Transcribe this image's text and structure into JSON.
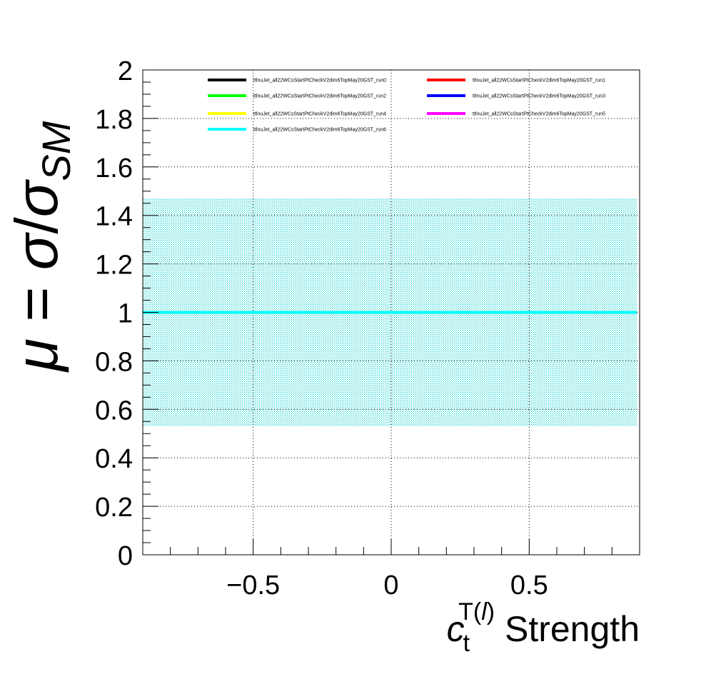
{
  "chart_data": {
    "type": "line",
    "xlabel": {
      "symbol": "c",
      "subscript": "t",
      "superscript": "T(l)",
      "superscript_prefix": "T(",
      "superscript_italic": "l",
      "superscript_suffix": ")",
      "suffix": " Strength"
    },
    "ylabel": {
      "mu": "μ",
      "equals": " = ",
      "sigma": "σ",
      "slash": "/",
      "sigma2": "σ",
      "sub": "SM"
    },
    "xlim": [
      -0.9,
      0.9
    ],
    "ylim": [
      0,
      2
    ],
    "x_ticks": [
      -0.5,
      0,
      0.5
    ],
    "x_tick_labels": [
      "−0.5",
      "0",
      "0.5"
    ],
    "y_ticks": [
      0,
      0.2,
      0.4,
      0.6,
      0.8,
      1,
      1.2,
      1.4,
      1.6,
      1.8,
      2
    ],
    "y_tick_labels": [
      "0",
      "0.2",
      "0.4",
      "0.6",
      "0.8",
      "1",
      "1.2",
      "1.4",
      "1.6",
      "1.8",
      "2"
    ],
    "grid": true,
    "legend_position": "top",
    "band": {
      "x": [
        -0.9,
        0.89
      ],
      "ymin": 0.53,
      "ymax": 1.47,
      "color": "#00e5e5"
    },
    "series": [
      {
        "name": "ttlnuJet_all22WCsStartPtCheckV2dim6TopMay20GST_run0",
        "color": "#000000",
        "x": [
          -0.9,
          0.89
        ],
        "y": [
          1,
          1
        ]
      },
      {
        "name": "ttlnuJet_all22WCsStartPtCheckV2dim6TopMay20GST_run1",
        "color": "#ff0000",
        "x": [
          -0.9,
          0.89
        ],
        "y": [
          1,
          1
        ]
      },
      {
        "name": "ttlnuJet_all22WCsStartPtCheckV2dim6TopMay20GST_run2",
        "color": "#00ff00",
        "x": [
          -0.9,
          0.89
        ],
        "y": [
          1,
          1
        ]
      },
      {
        "name": "ttlnuJet_all22WCsStartPtCheckV2dim6TopMay20GST_run3",
        "color": "#0000ff",
        "x": [
          -0.9,
          0.89
        ],
        "y": [
          1,
          1
        ]
      },
      {
        "name": "ttlnuJet_all22WCsStartPtCheckV2dim6TopMay20GST_run4",
        "color": "#ffff00",
        "x": [
          -0.9,
          0.89
        ],
        "y": [
          1,
          1
        ]
      },
      {
        "name": "ttlnuJet_all22WCsStartPtCheckV2dim6TopMay20GST_run5",
        "color": "#ff00ff",
        "x": [
          -0.9,
          0.89
        ],
        "y": [
          1,
          1
        ]
      },
      {
        "name": "ttlnuJet_all22WCsStartPtCheckV2dim6TopMay20GST_run6",
        "color": "#00ffff",
        "x": [
          -0.9,
          0.89
        ],
        "y": [
          1,
          1
        ]
      }
    ]
  }
}
